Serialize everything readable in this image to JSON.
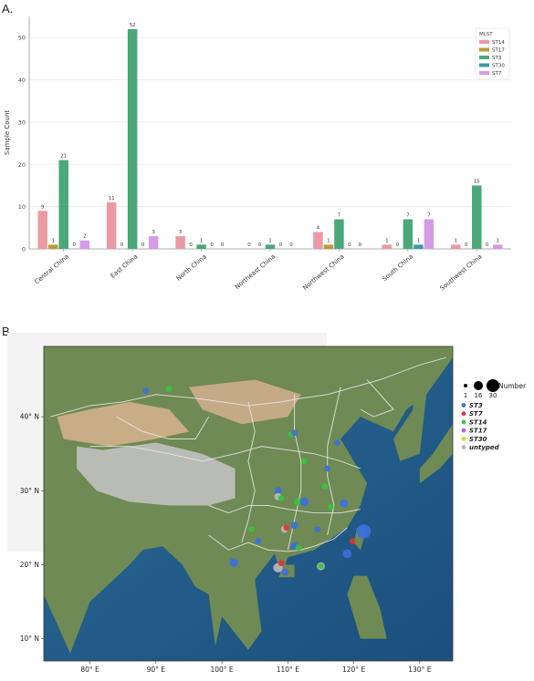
{
  "panel_a_label": "A.",
  "panel_b_label": "B.",
  "chart_data": [
    {
      "type": "bar",
      "ylabel": "Sample Count",
      "xlabel": "",
      "ylim": [
        0,
        55
      ],
      "yticks": [
        0,
        10,
        20,
        30,
        40,
        50
      ],
      "grid": true,
      "legend_title": "MLST",
      "legend_position": "top-right",
      "categories": [
        "Central China",
        "East China",
        "North China",
        "Northeast China",
        "Northwest China",
        "South China",
        "Southwest China"
      ],
      "series": [
        {
          "name": "ST14",
          "color": "#ea9aa3",
          "values": [
            9,
            11,
            3,
            0,
            4,
            1,
            1
          ]
        },
        {
          "name": "ST17",
          "color": "#b99a3b",
          "values": [
            1,
            0,
            0,
            0,
            1,
            0,
            0
          ]
        },
        {
          "name": "ST3",
          "color": "#4aa879",
          "values": [
            21,
            52,
            1,
            1,
            7,
            7,
            15
          ]
        },
        {
          "name": "ST30",
          "color": "#3d9ba6",
          "values": [
            0,
            0,
            0,
            0,
            0,
            1,
            0
          ]
        },
        {
          "name": "ST7",
          "color": "#d59be6",
          "values": [
            2,
            3,
            0,
            0,
            0,
            7,
            1
          ]
        }
      ]
    },
    {
      "type": "scatter",
      "map": "China region",
      "x_ticks": [
        "80° E",
        "90° E",
        "100° E",
        "110° E",
        "120° E",
        "130° E"
      ],
      "y_ticks": [
        "10° N",
        "20° N",
        "30° N",
        "40° N"
      ],
      "xlim": [
        73,
        135
      ],
      "ylim": [
        7,
        49.5
      ],
      "size_legend_title": "Number",
      "size_legend_values": [
        "1",
        "16",
        "30"
      ],
      "type_legend": [
        {
          "label": "ST3",
          "color": "#3b6fe0"
        },
        {
          "label": "ST7",
          "color": "#e0343a"
        },
        {
          "label": "ST14",
          "color": "#38c43c"
        },
        {
          "label": "ST17",
          "color": "#b864e0"
        },
        {
          "label": "ST30",
          "color": "#e6d22e"
        },
        {
          "label": "untyped",
          "color": "#b8b8b8"
        }
      ],
      "points": [
        {
          "lon": 88.5,
          "lat": 43.5,
          "type": "ST3",
          "n": 1
        },
        {
          "lon": 92.0,
          "lat": 43.8,
          "type": "ST14",
          "n": 1
        },
        {
          "lon": 110.5,
          "lat": 37.6,
          "type": "ST14",
          "n": 1
        },
        {
          "lon": 111.0,
          "lat": 37.8,
          "type": "ST3",
          "n": 1
        },
        {
          "lon": 112.5,
          "lat": 34.0,
          "type": "ST14",
          "n": 1
        },
        {
          "lon": 117.5,
          "lat": 36.5,
          "type": "ST3",
          "n": 1
        },
        {
          "lon": 116.0,
          "lat": 33.0,
          "type": "ST3",
          "n": 1
        },
        {
          "lon": 115.6,
          "lat": 30.6,
          "type": "ST14",
          "n": 1
        },
        {
          "lon": 108.5,
          "lat": 30.0,
          "type": "ST3",
          "n": 2
        },
        {
          "lon": 108.5,
          "lat": 29.2,
          "type": "untyped",
          "n": 2
        },
        {
          "lon": 109.0,
          "lat": 29.0,
          "type": "ST14",
          "n": 1
        },
        {
          "lon": 111.5,
          "lat": 28.5,
          "type": "ST14",
          "n": 2
        },
        {
          "lon": 112.5,
          "lat": 28.5,
          "type": "ST3",
          "n": 4
        },
        {
          "lon": 118.5,
          "lat": 28.3,
          "type": "ST3",
          "n": 3
        },
        {
          "lon": 116.5,
          "lat": 27.8,
          "type": "ST14",
          "n": 1
        },
        {
          "lon": 104.5,
          "lat": 24.8,
          "type": "ST14",
          "n": 1
        },
        {
          "lon": 105.5,
          "lat": 23.2,
          "type": "ST3",
          "n": 1
        },
        {
          "lon": 109.5,
          "lat": 24.8,
          "type": "untyped",
          "n": 2
        },
        {
          "lon": 109.8,
          "lat": 25.0,
          "type": "ST7",
          "n": 1
        },
        {
          "lon": 111.0,
          "lat": 25.3,
          "type": "ST3",
          "n": 2
        },
        {
          "lon": 114.5,
          "lat": 24.8,
          "type": "ST3",
          "n": 1
        },
        {
          "lon": 121.5,
          "lat": 24.5,
          "type": "ST3",
          "n": 16
        },
        {
          "lon": 119.8,
          "lat": 23.2,
          "type": "ST7",
          "n": 1
        },
        {
          "lon": 119.0,
          "lat": 21.5,
          "type": "ST3",
          "n": 4
        },
        {
          "lon": 111.0,
          "lat": 22.5,
          "type": "ST3",
          "n": 3
        },
        {
          "lon": 111.6,
          "lat": 22.3,
          "type": "ST14",
          "n": 1
        },
        {
          "lon": 101.8,
          "lat": 20.3,
          "type": "ST3",
          "n": 4
        },
        {
          "lon": 108.5,
          "lat": 19.6,
          "type": "untyped",
          "n": 5
        },
        {
          "lon": 109.6,
          "lat": 19.0,
          "type": "ST3",
          "n": 2
        },
        {
          "lon": 115.0,
          "lat": 19.8,
          "type": "untyped",
          "n": 3
        },
        {
          "lon": 115.0,
          "lat": 19.8,
          "type": "ST14",
          "n": 1
        },
        {
          "lon": 109.0,
          "lat": 20.2,
          "type": "ST7",
          "n": 1
        }
      ]
    }
  ]
}
